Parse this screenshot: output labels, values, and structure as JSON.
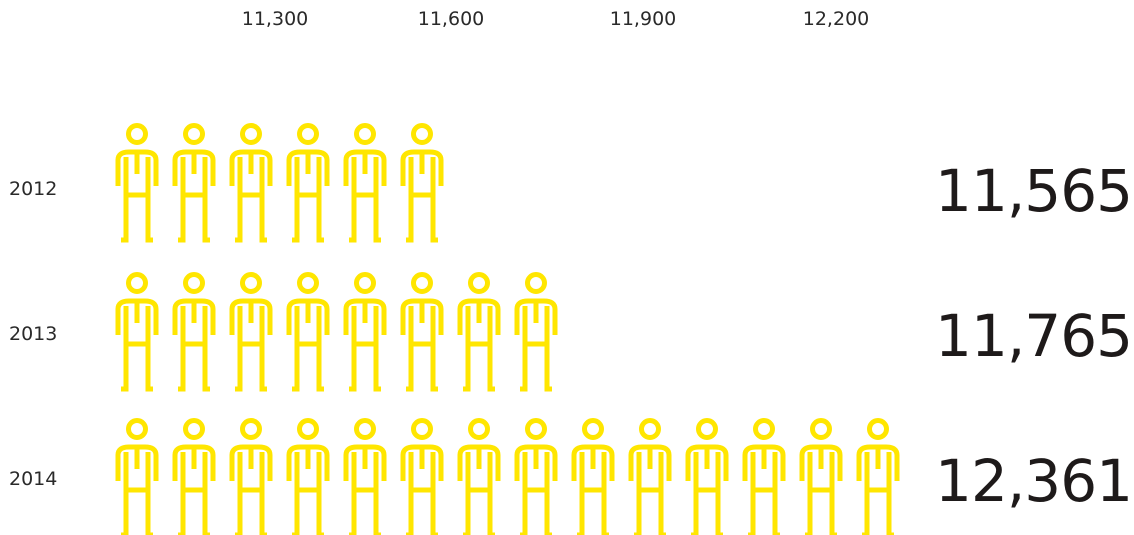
{
  "chart_data": {
    "type": "bar",
    "title": "",
    "xlabel": "",
    "ylabel": "",
    "x_ticks": [
      {
        "value": 11300,
        "label": "11,300"
      },
      {
        "value": 11600,
        "label": "11,600"
      },
      {
        "value": 11900,
        "label": "11,900"
      },
      {
        "value": 12200,
        "label": "12,200"
      }
    ],
    "categories": [
      "2012",
      "2013",
      "2014"
    ],
    "values": [
      11565,
      11765,
      12361
    ],
    "value_labels": [
      "11,565",
      "11,765",
      "12,361"
    ],
    "xlim": [
      11000,
      12300
    ],
    "icon": "person-icon",
    "icon_counts": [
      6,
      8,
      14
    ],
    "colors": {
      "figure": "#FFE600",
      "text": "#2a2a2a",
      "total_text": "#1e1a1a",
      "background": "#ffffff"
    }
  }
}
